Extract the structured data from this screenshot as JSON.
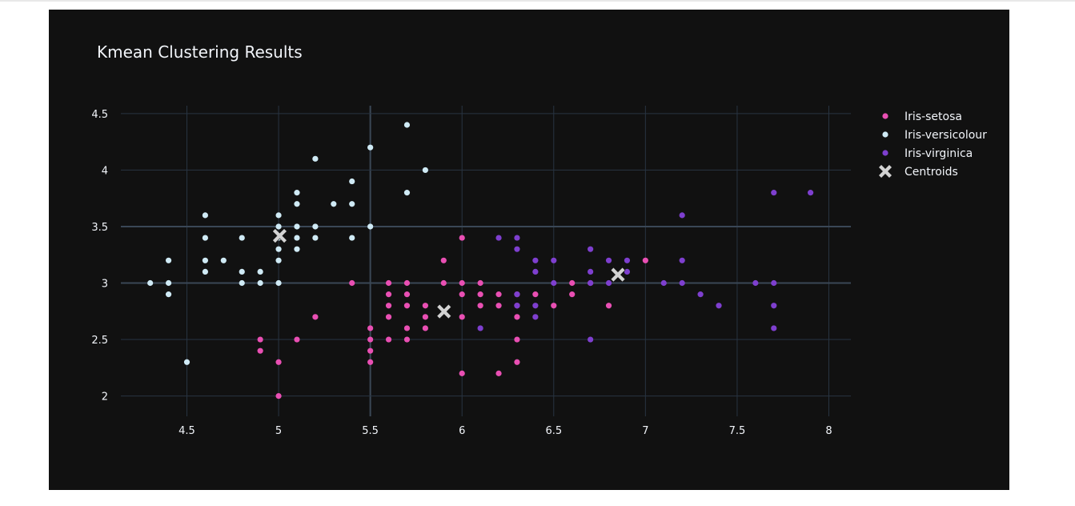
{
  "chart_data": {
    "type": "scatter",
    "title": "Kmean Clustering Results",
    "xlabel": "",
    "ylabel": "",
    "xlim": [
      4.14,
      8.12
    ],
    "ylim": [
      1.82,
      4.57
    ],
    "xticks": [
      "4.5",
      "5",
      "5.5",
      "6",
      "6.5",
      "7",
      "7.5",
      "8"
    ],
    "yticks": [
      "2",
      "2.5",
      "3",
      "3.5",
      "4",
      "4.5"
    ],
    "grid": true,
    "legend_position": "top-right",
    "background": "#111111",
    "series": [
      {
        "name": "Iris-setosa",
        "color": "#e94fb3",
        "marker": "circle",
        "points": [
          [
            4.9,
            2.5
          ],
          [
            4.9,
            2.4
          ],
          [
            5.0,
            2.3
          ],
          [
            5.0,
            2.0
          ],
          [
            5.1,
            2.5
          ],
          [
            5.2,
            2.7
          ],
          [
            5.4,
            3.0
          ],
          [
            5.5,
            2.6
          ],
          [
            5.5,
            2.5
          ],
          [
            5.5,
            2.4
          ],
          [
            5.5,
            2.3
          ],
          [
            5.6,
            3.0
          ],
          [
            5.6,
            2.9
          ],
          [
            5.6,
            2.8
          ],
          [
            5.6,
            2.7
          ],
          [
            5.6,
            2.5
          ],
          [
            5.7,
            3.0
          ],
          [
            5.7,
            2.9
          ],
          [
            5.7,
            2.8
          ],
          [
            5.7,
            2.6
          ],
          [
            5.7,
            2.5
          ],
          [
            5.8,
            2.8
          ],
          [
            5.8,
            2.7
          ],
          [
            5.8,
            2.6
          ],
          [
            5.9,
            3.2
          ],
          [
            5.9,
            3.0
          ],
          [
            6.0,
            3.4
          ],
          [
            6.0,
            3.0
          ],
          [
            6.0,
            2.9
          ],
          [
            6.0,
            2.7
          ],
          [
            6.0,
            2.2
          ],
          [
            6.1,
            3.0
          ],
          [
            6.1,
            2.9
          ],
          [
            6.1,
            2.8
          ],
          [
            6.2,
            2.9
          ],
          [
            6.2,
            2.8
          ],
          [
            6.2,
            2.2
          ],
          [
            6.3,
            2.9
          ],
          [
            6.3,
            2.8
          ],
          [
            6.3,
            2.7
          ],
          [
            6.3,
            2.5
          ],
          [
            6.3,
            2.3
          ],
          [
            6.4,
            2.9
          ],
          [
            6.5,
            2.8
          ],
          [
            6.6,
            3.0
          ],
          [
            6.6,
            2.9
          ],
          [
            6.7,
            3.0
          ],
          [
            6.8,
            2.8
          ],
          [
            7.0,
            3.2
          ]
        ]
      },
      {
        "name": "Iris-versicolour",
        "color": "#cfeaf5",
        "marker": "circle",
        "points": [
          [
            4.3,
            3.0
          ],
          [
            4.4,
            3.2
          ],
          [
            4.4,
            3.0
          ],
          [
            4.4,
            2.9
          ],
          [
            4.5,
            2.3
          ],
          [
            4.6,
            3.6
          ],
          [
            4.6,
            3.4
          ],
          [
            4.6,
            3.2
          ],
          [
            4.6,
            3.1
          ],
          [
            4.7,
            3.2
          ],
          [
            4.8,
            3.4
          ],
          [
            4.8,
            3.1
          ],
          [
            4.8,
            3.0
          ],
          [
            4.9,
            3.1
          ],
          [
            4.9,
            3.0
          ],
          [
            5.0,
            3.6
          ],
          [
            5.0,
            3.5
          ],
          [
            5.0,
            3.4
          ],
          [
            5.0,
            3.3
          ],
          [
            5.0,
            3.2
          ],
          [
            5.0,
            3.0
          ],
          [
            5.1,
            3.8
          ],
          [
            5.1,
            3.7
          ],
          [
            5.1,
            3.5
          ],
          [
            5.1,
            3.4
          ],
          [
            5.1,
            3.3
          ],
          [
            5.2,
            4.1
          ],
          [
            5.2,
            3.5
          ],
          [
            5.2,
            3.4
          ],
          [
            5.3,
            3.7
          ],
          [
            5.4,
            3.9
          ],
          [
            5.4,
            3.7
          ],
          [
            5.4,
            3.4
          ],
          [
            5.5,
            4.2
          ],
          [
            5.5,
            3.5
          ],
          [
            5.7,
            4.4
          ],
          [
            5.7,
            3.8
          ],
          [
            5.8,
            4.0
          ]
        ]
      },
      {
        "name": "Iris-virginica",
        "color": "#7e3fcf",
        "marker": "circle",
        "points": [
          [
            6.1,
            2.6
          ],
          [
            6.2,
            3.4
          ],
          [
            6.3,
            3.4
          ],
          [
            6.3,
            3.3
          ],
          [
            6.3,
            2.9
          ],
          [
            6.3,
            2.8
          ],
          [
            6.4,
            3.2
          ],
          [
            6.4,
            3.1
          ],
          [
            6.4,
            2.8
          ],
          [
            6.4,
            2.7
          ],
          [
            6.5,
            3.2
          ],
          [
            6.5,
            3.0
          ],
          [
            6.7,
            3.3
          ],
          [
            6.7,
            3.1
          ],
          [
            6.7,
            3.0
          ],
          [
            6.7,
            2.5
          ],
          [
            6.8,
            3.2
          ],
          [
            6.8,
            3.0
          ],
          [
            6.9,
            3.2
          ],
          [
            6.9,
            3.1
          ],
          [
            7.1,
            3.0
          ],
          [
            7.2,
            3.6
          ],
          [
            7.2,
            3.2
          ],
          [
            7.2,
            3.0
          ],
          [
            7.3,
            2.9
          ],
          [
            7.4,
            2.8
          ],
          [
            7.6,
            3.0
          ],
          [
            7.7,
            3.8
          ],
          [
            7.7,
            3.0
          ],
          [
            7.7,
            2.8
          ],
          [
            7.7,
            2.6
          ],
          [
            7.9,
            3.8
          ]
        ]
      },
      {
        "name": "Centroids",
        "color": "#d3d3d3",
        "marker": "x",
        "points": [
          [
            5.006,
            3.418
          ],
          [
            5.902,
            2.748
          ],
          [
            6.85,
            3.074
          ]
        ]
      }
    ]
  }
}
